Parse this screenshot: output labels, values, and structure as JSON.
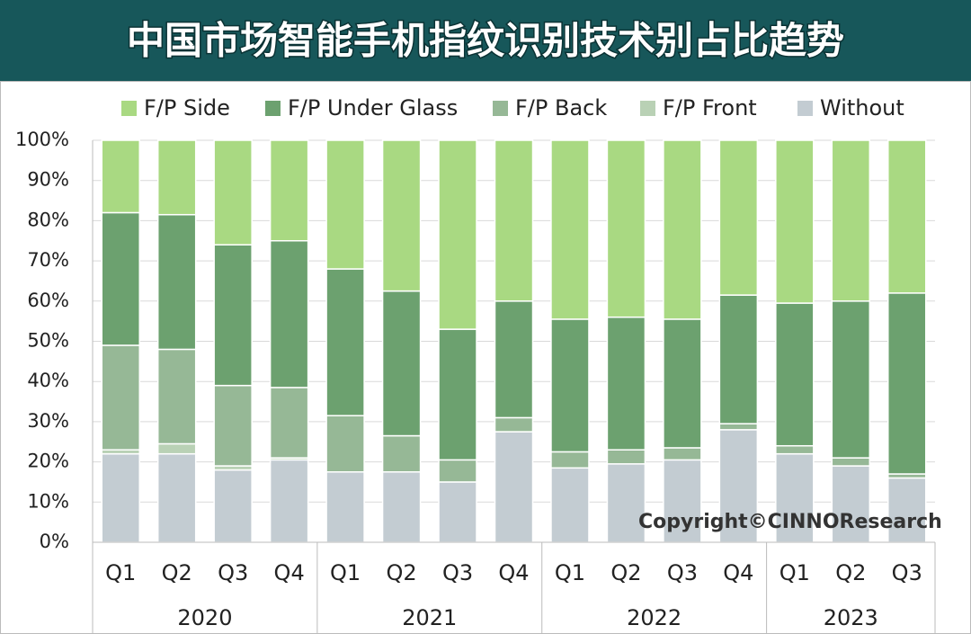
{
  "chart_data": {
    "type": "stacked_bar",
    "title": "中国市场智能手机指纹识别技术别占比趋势",
    "annotation": "Copyright©CINNOResearch",
    "categories": [
      "Q1",
      "Q2",
      "Q3",
      "Q4",
      "Q1",
      "Q2",
      "Q3",
      "Q4",
      "Q1",
      "Q2",
      "Q3",
      "Q4",
      "Q1",
      "Q2",
      "Q3"
    ],
    "groups": [
      {
        "label": "2020",
        "count": 4
      },
      {
        "label": "2021",
        "count": 4
      },
      {
        "label": "2022",
        "count": 4
      },
      {
        "label": "2023",
        "count": 3
      }
    ],
    "series": [
      {
        "name": "F/P Side",
        "color": "#a9d982",
        "values": [
          18,
          18.5,
          26,
          25,
          32,
          37.5,
          47,
          40,
          44.5,
          44,
          44.5,
          38.5,
          40.5,
          40,
          38
        ]
      },
      {
        "name": "F/P Under Glass",
        "color": "#6ca16f",
        "values": [
          33,
          33.5,
          35,
          36.5,
          36.5,
          36,
          32.5,
          29,
          33,
          33,
          32,
          32,
          35.5,
          39,
          45
        ]
      },
      {
        "name": "F/P Back",
        "color": "#96b896",
        "values": [
          26,
          23.5,
          20,
          17.5,
          14,
          9,
          5.5,
          3.5,
          4,
          3.5,
          3,
          1.5,
          2,
          2,
          1
        ]
      },
      {
        "name": "F/P Front",
        "color": "#b9d1b5",
        "values": [
          1,
          2.5,
          1,
          0.5,
          0,
          0,
          0,
          0,
          0,
          0,
          0,
          0,
          0,
          0,
          0
        ]
      },
      {
        "name": "Without",
        "color": "#c3ccd2",
        "values": [
          22,
          22,
          18,
          20.5,
          17.5,
          17.5,
          15,
          27.5,
          18.5,
          19.5,
          20.5,
          28,
          22,
          19,
          16
        ]
      }
    ],
    "stack_order": "bottom-up-from-last",
    "ylim": [
      0,
      100
    ],
    "yticks": [
      {
        "value": 0,
        "label": "0%"
      },
      {
        "value": 10,
        "label": "10%"
      },
      {
        "value": 20,
        "label": "20%"
      },
      {
        "value": 30,
        "label": "30%"
      },
      {
        "value": 40,
        "label": "40%"
      },
      {
        "value": 50,
        "label": "50%"
      },
      {
        "value": 60,
        "label": "60%"
      },
      {
        "value": 70,
        "label": "70%"
      },
      {
        "value": 80,
        "label": "80%"
      },
      {
        "value": 90,
        "label": "90%"
      },
      {
        "value": 100,
        "label": "100%"
      }
    ],
    "grid": true,
    "legend": "top"
  }
}
